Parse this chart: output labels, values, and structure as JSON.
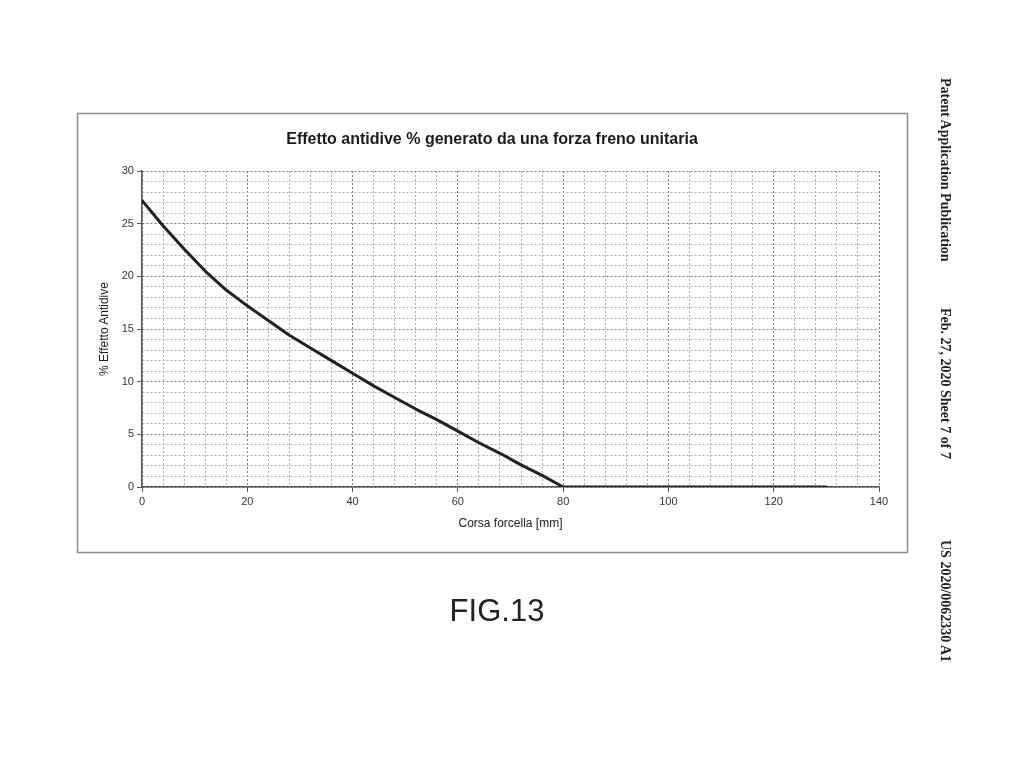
{
  "chart_data": {
    "type": "line",
    "title": "Effetto antidive % generato da una forza freno unitaria",
    "xlabel": "Corsa forcella [mm]",
    "ylabel": "% Effetto Antidive",
    "x": [
      0,
      4,
      8,
      12,
      16,
      20,
      24,
      28,
      32,
      36,
      40,
      44,
      48,
      52,
      56,
      60,
      64,
      68,
      72,
      76,
      80,
      130
    ],
    "values": [
      27.2,
      24.8,
      22.6,
      20.5,
      18.7,
      17.2,
      15.8,
      14.4,
      13.2,
      12.0,
      10.8,
      9.6,
      8.5,
      7.4,
      6.4,
      5.3,
      4.2,
      3.2,
      2.1,
      1.1,
      0,
      0
    ],
    "color": "#222222",
    "marker": "none",
    "xlim": [
      0,
      140
    ],
    "ylim": [
      0,
      30
    ],
    "xticks": [
      0,
      {
        "value": 4,
        "label": null
      },
      {
        "value": 8,
        "label": null
      },
      {
        "value": 12,
        "label": null
      },
      {
        "value": 16,
        "label": null
      },
      20,
      {
        "value": 24,
        "label": null
      },
      {
        "value": 28,
        "label": null
      },
      {
        "value": 32,
        "label": null
      },
      {
        "value": 36,
        "label": null
      },
      40,
      {
        "value": 44,
        "label": null
      },
      {
        "value": 48,
        "label": null
      },
      {
        "value": 52,
        "label": null
      },
      {
        "value": 56,
        "label": null
      },
      60,
      {
        "value": 64,
        "label": null
      },
      {
        "value": 68,
        "label": null
      },
      {
        "value": 72,
        "label": null
      },
      {
        "value": 76,
        "label": null
      },
      80,
      {
        "value": 84,
        "label": null
      },
      {
        "value": 88,
        "label": null
      },
      {
        "value": 92,
        "label": null
      },
      {
        "value": 96,
        "label": null
      },
      100,
      {
        "value": 104,
        "label": null
      },
      {
        "value": 108,
        "label": null
      },
      {
        "value": 112,
        "label": null
      },
      {
        "value": 116,
        "label": null
      },
      120,
      {
        "value": 124,
        "label": null
      },
      {
        "value": 128,
        "label": null
      },
      {
        "value": 132,
        "label": null
      },
      {
        "value": 136,
        "label": null
      },
      140
    ],
    "yticks": [
      0,
      {
        "value": 1,
        "label": null
      },
      {
        "value": 2,
        "label": null
      },
      {
        "value": 3,
        "label": null
      },
      {
        "value": 4,
        "label": null
      },
      5,
      {
        "value": 6,
        "label": null
      },
      {
        "value": 7,
        "label": null
      },
      {
        "value": 8,
        "label": null
      },
      {
        "value": 9,
        "label": null
      },
      10,
      {
        "value": 11,
        "label": null
      },
      {
        "value": 12,
        "label": null
      },
      {
        "value": 13,
        "label": null
      },
      {
        "value": 14,
        "label": null
      },
      15,
      {
        "value": 16,
        "label": null
      },
      {
        "value": 17,
        "label": null
      },
      {
        "value": 18,
        "label": null
      },
      {
        "value": 19,
        "label": null
      },
      20,
      {
        "value": 21,
        "label": null
      },
      {
        "value": 22,
        "label": null
      },
      {
        "value": 23,
        "label": null
      },
      {
        "value": 24,
        "label": null
      },
      25,
      {
        "value": 26,
        "label": null
      },
      {
        "value": 27,
        "label": null
      },
      {
        "value": 28,
        "label": null
      },
      {
        "value": 29,
        "label": null
      },
      30
    ],
    "grid": true,
    "annotations": [
      "FIG.13",
      "Patent Application Publication",
      "Feb. 27, 2020 Sheet 7 of 7",
      "US 2020/0062330 A1"
    ]
  }
}
